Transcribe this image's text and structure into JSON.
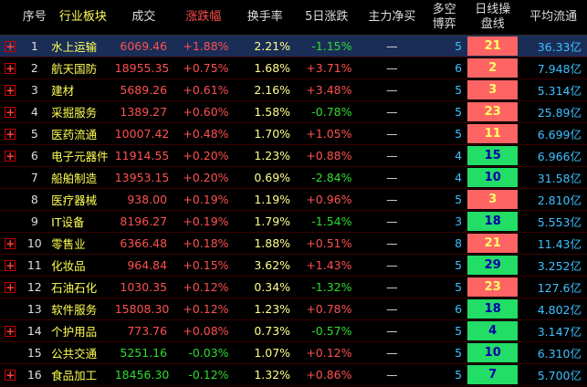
{
  "header": {
    "col_no": "序号",
    "col_sector": "行业板块",
    "col_price": "成交",
    "col_change": "涨跌幅",
    "col_turnover": "换手率",
    "col_change5d": "5日涨跌",
    "col_mainflow": "主力净买",
    "col_bullbear_1": "多空",
    "col_bullbear_2": "博弈",
    "col_dayline_1": "日线操",
    "col_dayline_2": "盘线",
    "col_avgcap": "平均流通"
  },
  "rows": [
    {
      "expand": "+",
      "no": "1",
      "name": "水上运输",
      "price": "6069.46",
      "change": "+1.88%",
      "turnover": "2.21%",
      "change5d": "-1.15%",
      "mainflow": "—",
      "bullbear": "5",
      "dayline": "21",
      "dayline_color": "red",
      "avgcap": "36.33亿",
      "change_dir": "up",
      "change5d_dir": "down"
    },
    {
      "expand": "+",
      "no": "2",
      "name": "航天国防",
      "price": "18955.35",
      "change": "+0.75%",
      "turnover": "1.68%",
      "change5d": "+3.71%",
      "mainflow": "—",
      "bullbear": "6",
      "dayline": "2",
      "dayline_color": "red",
      "avgcap": "7.948亿",
      "change_dir": "up",
      "change5d_dir": "up"
    },
    {
      "expand": "+",
      "no": "3",
      "name": "建材",
      "price": "5689.26",
      "change": "+0.61%",
      "turnover": "2.16%",
      "change5d": "+3.48%",
      "mainflow": "—",
      "bullbear": "5",
      "dayline": "3",
      "dayline_color": "red",
      "avgcap": "5.314亿",
      "change_dir": "up",
      "change5d_dir": "up"
    },
    {
      "expand": "+",
      "no": "4",
      "name": "采掘服务",
      "price": "1389.27",
      "change": "+0.60%",
      "turnover": "1.58%",
      "change5d": "-0.78%",
      "mainflow": "—",
      "bullbear": "5",
      "dayline": "23",
      "dayline_color": "red",
      "avgcap": "25.89亿",
      "change_dir": "up",
      "change5d_dir": "down"
    },
    {
      "expand": "+",
      "no": "5",
      "name": "医药流通",
      "price": "10007.42",
      "change": "+0.48%",
      "turnover": "1.70%",
      "change5d": "+1.05%",
      "mainflow": "—",
      "bullbear": "5",
      "dayline": "11",
      "dayline_color": "red",
      "avgcap": "6.699亿",
      "change_dir": "up",
      "change5d_dir": "up"
    },
    {
      "expand": "+",
      "no": "6",
      "name": "电子元器件",
      "price": "11914.55",
      "change": "+0.20%",
      "turnover": "1.23%",
      "change5d": "+0.88%",
      "mainflow": "—",
      "bullbear": "4",
      "dayline": "15",
      "dayline_color": "green",
      "avgcap": "6.966亿",
      "change_dir": "up",
      "change5d_dir": "up"
    },
    {
      "expand": "",
      "no": "7",
      "name": "船舶制造",
      "price": "13953.15",
      "change": "+0.20%",
      "turnover": "0.69%",
      "change5d": "-2.84%",
      "mainflow": "—",
      "bullbear": "4",
      "dayline": "10",
      "dayline_color": "green",
      "avgcap": "31.58亿",
      "change_dir": "up",
      "change5d_dir": "down"
    },
    {
      "expand": "",
      "no": "8",
      "name": "医疗器械",
      "price": "938.00",
      "change": "+0.19%",
      "turnover": "1.19%",
      "change5d": "+0.96%",
      "mainflow": "—",
      "bullbear": "5",
      "dayline": "3",
      "dayline_color": "red",
      "avgcap": "2.810亿",
      "change_dir": "up",
      "change5d_dir": "up"
    },
    {
      "expand": "",
      "no": "9",
      "name": "IT设备",
      "price": "8196.27",
      "change": "+0.19%",
      "turnover": "1.79%",
      "change5d": "-1.54%",
      "mainflow": "—",
      "bullbear": "3",
      "dayline": "18",
      "dayline_color": "green",
      "avgcap": "5.553亿",
      "change_dir": "up",
      "change5d_dir": "down"
    },
    {
      "expand": "+",
      "no": "10",
      "name": "零售业",
      "price": "6366.48",
      "change": "+0.18%",
      "turnover": "1.88%",
      "change5d": "+0.51%",
      "mainflow": "—",
      "bullbear": "8",
      "dayline": "21",
      "dayline_color": "red",
      "avgcap": "11.43亿",
      "change_dir": "up",
      "change5d_dir": "up"
    },
    {
      "expand": "+",
      "no": "11",
      "name": "化妆品",
      "price": "964.84",
      "change": "+0.15%",
      "turnover": "3.62%",
      "change5d": "+1.43%",
      "mainflow": "—",
      "bullbear": "5",
      "dayline": "29",
      "dayline_color": "green",
      "avgcap": "3.252亿",
      "change_dir": "up",
      "change5d_dir": "up"
    },
    {
      "expand": "+",
      "no": "12",
      "name": "石油石化",
      "price": "1030.35",
      "change": "+0.12%",
      "turnover": "0.34%",
      "change5d": "-1.32%",
      "mainflow": "—",
      "bullbear": "5",
      "dayline": "23",
      "dayline_color": "red",
      "avgcap": "127.6亿",
      "change_dir": "up",
      "change5d_dir": "down"
    },
    {
      "expand": "",
      "no": "13",
      "name": "软件服务",
      "price": "15808.30",
      "change": "+0.12%",
      "turnover": "1.23%",
      "change5d": "+0.78%",
      "mainflow": "—",
      "bullbear": "6",
      "dayline": "18",
      "dayline_color": "green",
      "avgcap": "4.802亿",
      "change_dir": "up",
      "change5d_dir": "up"
    },
    {
      "expand": "+",
      "no": "14",
      "name": "个护用品",
      "price": "773.76",
      "change": "+0.08%",
      "turnover": "0.73%",
      "change5d": "-0.57%",
      "mainflow": "—",
      "bullbear": "5",
      "dayline": "4",
      "dayline_color": "green",
      "avgcap": "3.147亿",
      "change_dir": "up",
      "change5d_dir": "down"
    },
    {
      "expand": "",
      "no": "15",
      "name": "公共交通",
      "price": "5251.16",
      "change": "-0.03%",
      "turnover": "1.07%",
      "change5d": "+0.12%",
      "mainflow": "—",
      "bullbear": "5",
      "dayline": "10",
      "dayline_color": "green",
      "avgcap": "6.310亿",
      "change_dir": "down",
      "change5d_dir": "up"
    },
    {
      "expand": "+",
      "no": "16",
      "name": "食品加工",
      "price": "18456.30",
      "change": "-0.12%",
      "turnover": "1.32%",
      "change5d": "+0.86%",
      "mainflow": "—",
      "bullbear": "5",
      "dayline": "7",
      "dayline_color": "green",
      "avgcap": "5.700亿",
      "change_dir": "down",
      "change5d_dir": "up"
    }
  ]
}
